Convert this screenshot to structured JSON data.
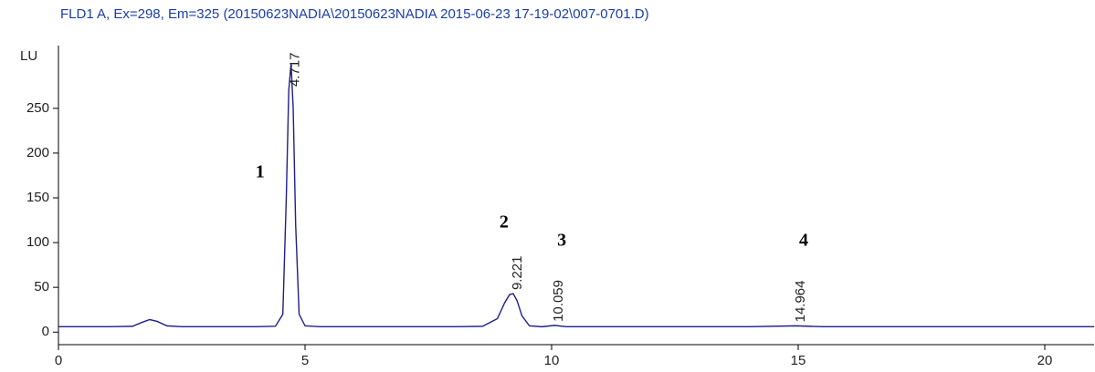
{
  "chart_data": {
    "type": "line",
    "title": "FLD1 A, Ex=298, Em=325 (20150623NADIA\\20150623NADIA 2015-06-23 17-19-02\\007-0701.D)",
    "y_label": "LU",
    "x": [
      0,
      0.5,
      1,
      1.5,
      1.7,
      1.85,
      2.0,
      2.2,
      2.5,
      3,
      3.5,
      4,
      4.4,
      4.55,
      4.62,
      4.67,
      4.717,
      4.76,
      4.81,
      4.88,
      5.0,
      5.3,
      6,
      7,
      8,
      8.6,
      8.9,
      9.05,
      9.15,
      9.221,
      9.3,
      9.4,
      9.55,
      9.8,
      10.059,
      10.3,
      11,
      12,
      13,
      14,
      14.964,
      15.5,
      16,
      17,
      18,
      19,
      20,
      21
    ],
    "series": [
      {
        "name": "FLD1 A",
        "color": "#1f1f8f",
        "values": [
          6,
          6,
          6,
          6.5,
          11,
          14,
          12,
          7,
          6,
          6,
          6,
          6,
          6.5,
          20,
          150,
          270,
          300,
          250,
          120,
          20,
          7,
          6,
          6,
          6,
          6,
          6.5,
          15,
          33,
          42,
          43,
          35,
          18,
          7,
          6,
          7.5,
          6,
          6,
          6,
          6,
          6,
          7,
          6,
          6,
          6,
          6,
          6,
          6,
          6
        ]
      }
    ],
    "peak_labels": [
      4.717,
      9.221,
      10.059,
      14.964
    ],
    "peak_numbers": [
      "1",
      "2",
      "3",
      "4"
    ],
    "xlim": [
      0,
      21
    ],
    "ylim": [
      -14,
      315
    ],
    "xticks": [
      0,
      5,
      10,
      15,
      20
    ],
    "yticks": [
      0,
      50,
      100,
      150,
      200,
      250
    ]
  }
}
